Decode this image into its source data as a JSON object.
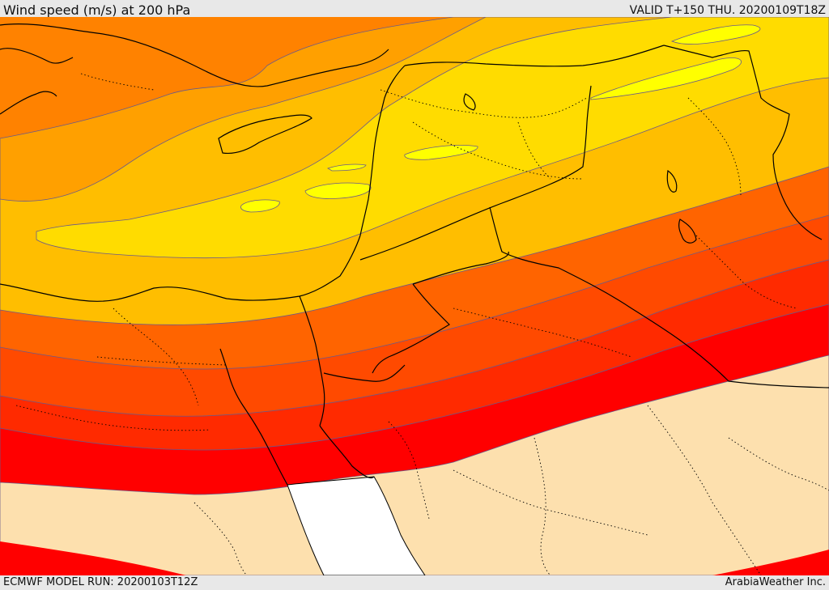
{
  "header": {
    "title": "Wind speed (m/s) at 200 hPa",
    "valid": "VALID T+150 THU. 20200109T18Z"
  },
  "footer": {
    "model_run": "ECMWF MODEL RUN: 20200103T12Z",
    "credit": "ArabiaWeather Inc."
  },
  "colors": {
    "band_lowest": "#fde0ae",
    "band_red": "#ff0000",
    "band_red_orange": "#ff2a00",
    "band_orange_red": "#ff4a00",
    "band_dark_orange": "#ff6400",
    "band_orange": "#ff8200",
    "band_light_orange": "#ffa000",
    "band_amber": "#ffbe00",
    "band_yellow": "#ffdc00",
    "band_bright_yellow": "#ffff00",
    "sea_white": "#ffffff",
    "contour_line": "#6a5a8a",
    "border_line": "#000000"
  }
}
